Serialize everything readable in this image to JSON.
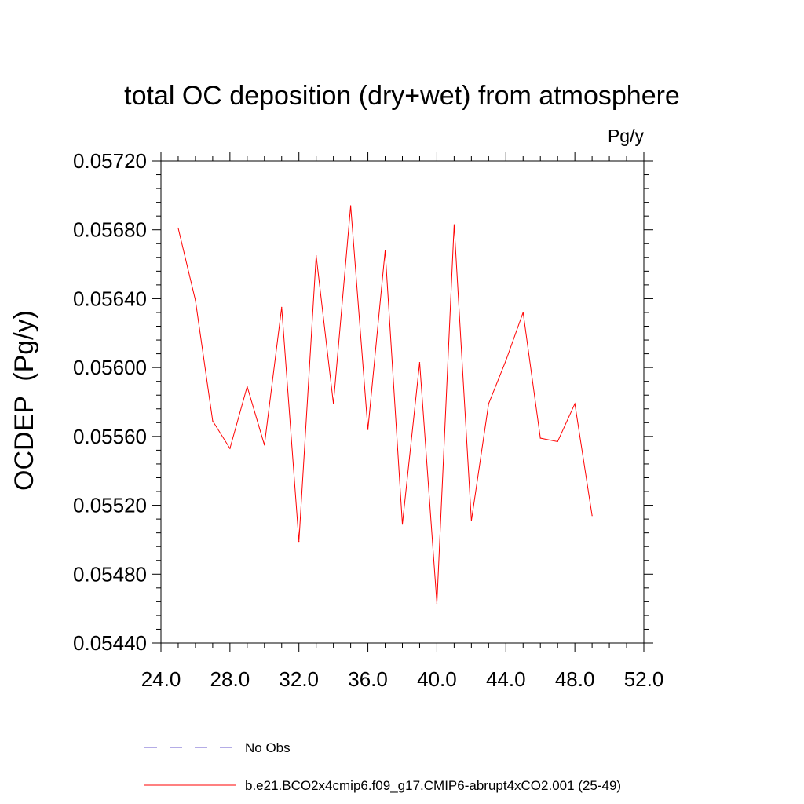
{
  "chart_data": {
    "type": "line",
    "title": "total OC deposition (dry+wet) from atmosphere",
    "units_label": "Pg/y",
    "ylabel": "OCDEP  (Pg/y)",
    "xlabel": "",
    "xlim": [
      24,
      52
    ],
    "ylim": [
      0.0544,
      0.0572
    ],
    "x_ticks": [
      24,
      28,
      32,
      36,
      40,
      44,
      48,
      52
    ],
    "x_tick_labels": [
      "24.0",
      "28.0",
      "32.0",
      "36.0",
      "40.0",
      "44.0",
      "48.0",
      "52.0"
    ],
    "y_ticks": [
      0.0544,
      0.0548,
      0.0552,
      0.0556,
      0.056,
      0.0564,
      0.0568,
      0.0572
    ],
    "y_tick_labels": [
      "0.05440",
      "0.05480",
      "0.05520",
      "0.05560",
      "0.05600",
      "0.05640",
      "0.05680",
      "0.05720"
    ],
    "grid": false,
    "legend_placement": "bottom",
    "series": [
      {
        "name": "b.e21.BCO2x4cmip6.f09_g17.CMIP6-abrupt4xCO2.001 (25-49)",
        "color": "#ff0000",
        "x": [
          25,
          26,
          27,
          28,
          29,
          30,
          31,
          32,
          33,
          34,
          35,
          36,
          37,
          38,
          39,
          40,
          41,
          42,
          43,
          44,
          45,
          46,
          47,
          48,
          49
        ],
        "y": [
          0.05681,
          0.05639,
          0.05569,
          0.05553,
          0.05589,
          0.05555,
          0.05635,
          0.05499,
          0.05665,
          0.05579,
          0.05694,
          0.05564,
          0.05668,
          0.05509,
          0.05603,
          0.05463,
          0.05683,
          0.05511,
          0.05579,
          0.05604,
          0.05632,
          0.05559,
          0.05557,
          0.05579,
          0.05514
        ]
      }
    ],
    "legend": [
      {
        "label": "No Obs",
        "color": "#6a5acd",
        "dash": true
      },
      {
        "label": "b.e21.BCO2x4cmip6.f09_g17.CMIP6-abrupt4xCO2.001 (25-49)",
        "color": "#ff0000",
        "dash": false
      }
    ]
  }
}
